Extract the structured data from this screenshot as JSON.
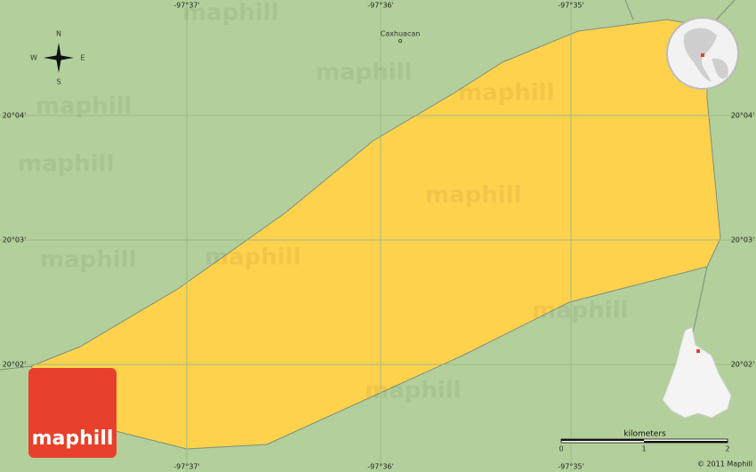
{
  "map": {
    "place_labels": [
      "Caxhuacan"
    ],
    "top_longitudes": [
      "-97°37'",
      "-97°36'",
      "-97°35'"
    ],
    "bottom_longitudes": [
      "-97°37'",
      "-97°36'",
      "-97°35'"
    ],
    "left_latitudes": [
      "20°04'",
      "20°03'",
      "20°02'"
    ],
    "right_latitudes": [
      "20°04'",
      "20°03'",
      "20°02'"
    ],
    "compass": {
      "n": "N",
      "e": "E",
      "s": "S",
      "w": "W"
    },
    "logo": "maphill",
    "scale": {
      "unit": "kilometers",
      "ticks": [
        "0",
        "1",
        "2"
      ]
    },
    "copyright": "© 2011 Maphill",
    "watermarks": [
      "maphill",
      "maphill",
      "maphill",
      "maphill",
      "maphill",
      "maphill",
      "maphill",
      "maphill",
      "maphill",
      "maphill"
    ]
  }
}
